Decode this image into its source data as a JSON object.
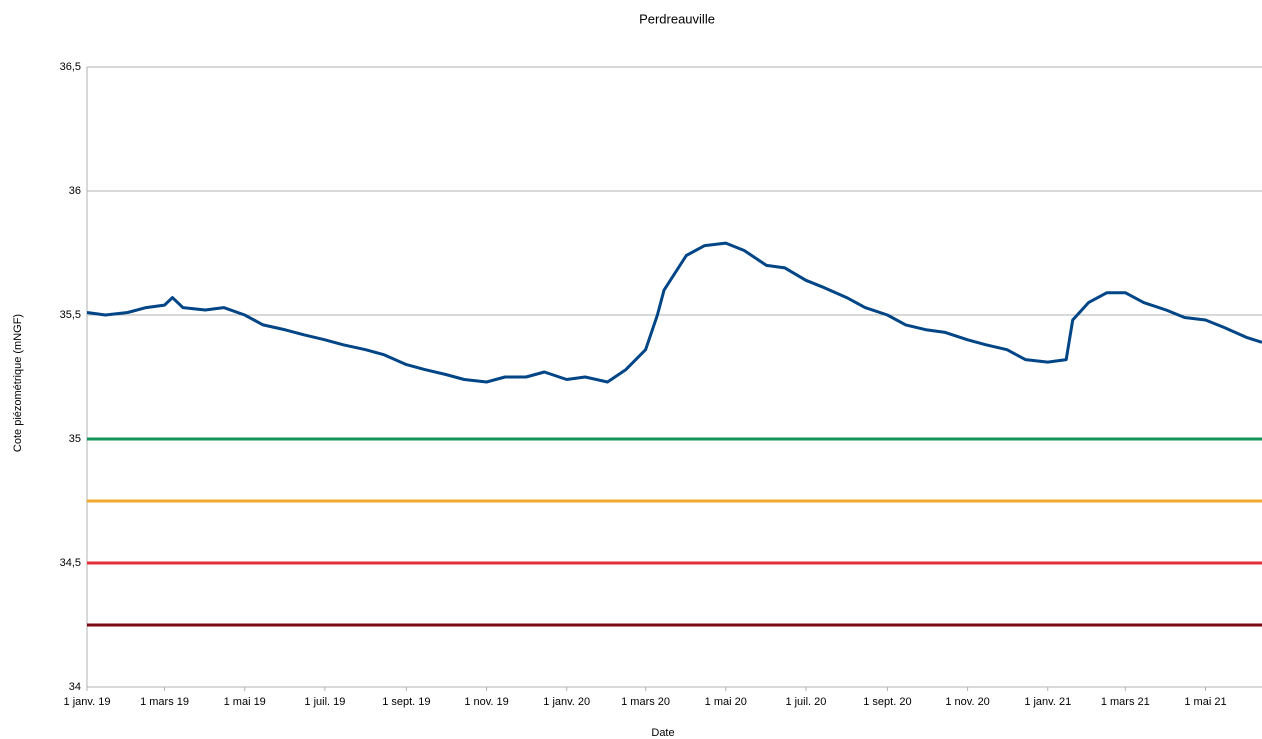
{
  "chart_data": {
    "type": "line",
    "title": "Perdreauville",
    "xlabel": "Date",
    "ylabel": "Cote piézométrique (mNGF)",
    "x": [
      "2019-01-01",
      "2019-01-15",
      "2019-02-01",
      "2019-02-15",
      "2019-03-01",
      "2019-03-07",
      "2019-03-15",
      "2019-04-01",
      "2019-04-15",
      "2019-05-01",
      "2019-05-15",
      "2019-06-01",
      "2019-06-15",
      "2019-07-01",
      "2019-07-15",
      "2019-08-01",
      "2019-08-15",
      "2019-09-01",
      "2019-09-15",
      "2019-10-01",
      "2019-10-15",
      "2019-11-01",
      "2019-11-15",
      "2019-12-01",
      "2019-12-15",
      "2020-01-01",
      "2020-01-15",
      "2020-02-01",
      "2020-02-15",
      "2020-03-01",
      "2020-03-10",
      "2020-03-15",
      "2020-04-01",
      "2020-04-15",
      "2020-05-01",
      "2020-05-15",
      "2020-06-01",
      "2020-06-15",
      "2020-07-01",
      "2020-07-15",
      "2020-08-01",
      "2020-08-15",
      "2020-09-01",
      "2020-09-15",
      "2020-10-01",
      "2020-10-15",
      "2020-11-01",
      "2020-11-15",
      "2020-12-01",
      "2020-12-15",
      "2021-01-01",
      "2021-01-15",
      "2021-01-20",
      "2021-02-01",
      "2021-02-15",
      "2021-03-01",
      "2021-03-15",
      "2021-04-01",
      "2021-04-15",
      "2021-05-01",
      "2021-05-15",
      "2021-06-01",
      "2021-06-13"
    ],
    "series": [
      {
        "color": "#004586",
        "values": [
          35.51,
          35.5,
          35.51,
          35.53,
          35.54,
          35.57,
          35.53,
          35.52,
          35.53,
          35.5,
          35.46,
          35.44,
          35.42,
          35.4,
          35.38,
          35.36,
          35.34,
          35.3,
          35.28,
          35.26,
          35.24,
          35.23,
          35.25,
          35.25,
          35.27,
          35.24,
          35.25,
          35.23,
          35.28,
          35.36,
          35.5,
          35.6,
          35.74,
          35.78,
          35.79,
          35.76,
          35.7,
          35.69,
          35.64,
          35.61,
          35.57,
          35.53,
          35.5,
          35.46,
          35.44,
          35.43,
          35.4,
          35.38,
          35.36,
          35.32,
          35.31,
          35.32,
          35.48,
          35.55,
          35.59,
          35.59,
          35.55,
          35.52,
          35.49,
          35.48,
          35.45,
          35.41,
          35.39
        ]
      }
    ],
    "thresholds": [
      {
        "value": 35,
        "color": "#109457"
      },
      {
        "value": 34.75,
        "color": "#f0a830"
      },
      {
        "value": 34.5,
        "color": "#e32f3a"
      },
      {
        "value": 34.25,
        "color": "#780a14"
      }
    ],
    "xlim": [
      "2019-01-01",
      "2021-06-13"
    ],
    "xticks": [
      {
        "value": "2019-01-01",
        "label": "1 janv. 19"
      },
      {
        "value": "2019-03-01",
        "label": "1 mars 19"
      },
      {
        "value": "2019-05-01",
        "label": "1 mai 19"
      },
      {
        "value": "2019-07-01",
        "label": "1 juil. 19"
      },
      {
        "value": "2019-09-01",
        "label": "1 sept. 19"
      },
      {
        "value": "2019-11-01",
        "label": "1 nov. 19"
      },
      {
        "value": "2020-01-01",
        "label": "1 janv. 20"
      },
      {
        "value": "2020-03-01",
        "label": "1 mars 20"
      },
      {
        "value": "2020-05-01",
        "label": "1 mai 20"
      },
      {
        "value": "2020-07-01",
        "label": "1 juil. 20"
      },
      {
        "value": "2020-09-01",
        "label": "1 sept. 20"
      },
      {
        "value": "2020-11-01",
        "label": "1 nov. 20"
      },
      {
        "value": "2021-01-01",
        "label": "1 janv. 21"
      },
      {
        "value": "2021-03-01",
        "label": "1 mars 21"
      },
      {
        "value": "2021-05-01",
        "label": "1 mai 21"
      }
    ],
    "ylim": [
      34,
      36.5
    ],
    "yticks": [
      34,
      {
        "value": 34.5,
        "label": "34,5"
      },
      35,
      {
        "value": 35.5,
        "label": "35,5"
      },
      36,
      {
        "value": 36.5,
        "label": "36,5"
      }
    ],
    "grid": true
  }
}
